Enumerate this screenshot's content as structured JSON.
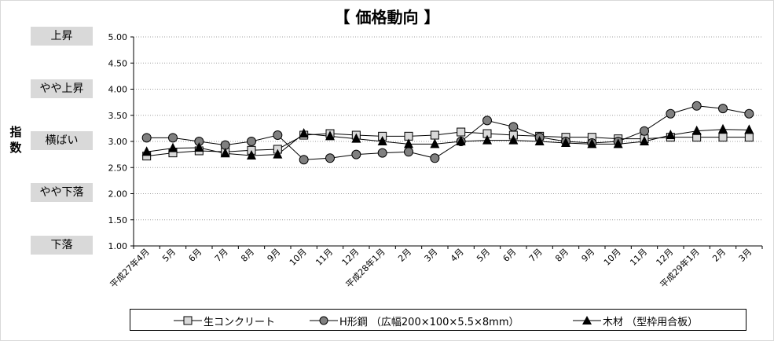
{
  "chart_data": {
    "type": "line",
    "title": "【 価格動向 】",
    "ylabel": "指数",
    "ylim": [
      1.0,
      5.0
    ],
    "ytick_step": 0.5,
    "grid": true,
    "legend_position": "bottom",
    "level_labels": [
      {
        "value": 5.0,
        "label": "上昇"
      },
      {
        "value": 4.0,
        "label": "やや上昇"
      },
      {
        "value": 3.0,
        "label": "横ばい"
      },
      {
        "value": 2.0,
        "label": "やや下落"
      },
      {
        "value": 1.0,
        "label": "下落"
      }
    ],
    "categories": [
      "平成27年4月",
      "5月",
      "6月",
      "7月",
      "8月",
      "9月",
      "10月",
      "11月",
      "12月",
      "平成28年1月",
      "2月",
      "3月",
      "4月",
      "5月",
      "6月",
      "7月",
      "8月",
      "9月",
      "10月",
      "11月",
      "12月",
      "平成29年1月",
      "2月",
      "3月"
    ],
    "series": [
      {
        "name": "生コンクリート",
        "marker": "square",
        "values": [
          2.72,
          2.78,
          2.82,
          2.8,
          2.83,
          2.85,
          3.12,
          3.15,
          3.12,
          3.1,
          3.1,
          3.12,
          3.18,
          3.15,
          3.12,
          3.1,
          3.08,
          3.08,
          3.05,
          3.05,
          3.08,
          3.08,
          3.08,
          3.08
        ]
      },
      {
        "name": "H形鋼 （広幅200×100×5.5×8mm）",
        "marker": "circle",
        "values": [
          3.07,
          3.07,
          3.0,
          2.93,
          3.0,
          3.12,
          2.65,
          2.68,
          2.75,
          2.78,
          2.8,
          2.68,
          3.0,
          3.4,
          3.28,
          3.08,
          3.0,
          2.97,
          3.0,
          3.2,
          3.53,
          3.68,
          3.63,
          3.53
        ]
      },
      {
        "name": "木材 （型枠用合板）",
        "marker": "triangle",
        "values": [
          2.8,
          2.87,
          2.88,
          2.77,
          2.73,
          2.75,
          3.15,
          3.1,
          3.05,
          3.0,
          2.95,
          2.95,
          3.0,
          3.02,
          3.02,
          3.0,
          2.97,
          2.95,
          2.95,
          3.0,
          3.12,
          3.2,
          3.23,
          3.22
        ]
      }
    ],
    "colors": {
      "square_fill": "#d9d9d9",
      "circle_fill": "#808080",
      "triangle_fill": "#000000",
      "line": "#000000",
      "grid": "#a0a0a0",
      "label_box": "#d9d9d9"
    }
  }
}
